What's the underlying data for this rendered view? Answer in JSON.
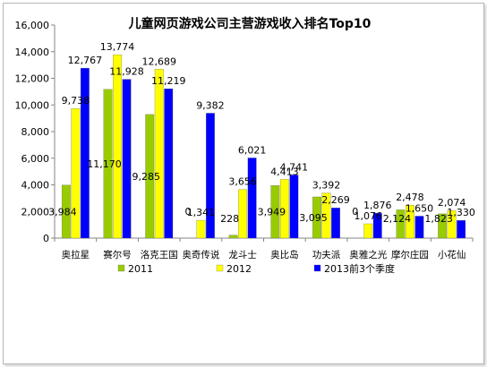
{
  "chart_data": {
    "type": "bar",
    "title": "儿童网页游戏公司主营游戏收入排名Top10",
    "categories": [
      "奥拉星",
      "赛尔号",
      "洛克王国",
      "奥奇传说",
      "龙斗士",
      "奥比岛",
      "功夫派",
      "奥雅之光",
      "摩尔庄园",
      "小花仙"
    ],
    "series": [
      {
        "name": "2011",
        "color": "#99cc00",
        "values": [
          3984,
          11170,
          9285,
          0,
          228,
          3949,
          3095,
          0,
          2124,
          1823
        ]
      },
      {
        "name": "2012",
        "color": "#ffff00",
        "values": [
          9738,
          13774,
          12689,
          1341,
          3656,
          4413,
          3392,
          1076,
          2478,
          2074
        ]
      },
      {
        "name": "2013前3个季度",
        "color": "#0000ff",
        "values": [
          12767,
          11928,
          11219,
          9382,
          6021,
          4741,
          2269,
          1876,
          1650,
          1330
        ]
      }
    ],
    "data_labels": [
      [
        "3,984",
        "11,170",
        "9,285",
        "0",
        "228",
        "3,949",
        "3,095",
        "0",
        "2,124",
        "1,823"
      ],
      [
        "9,738",
        "13,774",
        "12,689",
        "1,341",
        "3,656",
        "4,413",
        "3,392",
        "1,076",
        "2,478",
        "2,074"
      ],
      [
        "12,767",
        "11,928",
        "11,219",
        "9,382",
        "6,021",
        "4,741",
        "2,269",
        "1,876",
        "1,650",
        "1,330"
      ]
    ],
    "y_ticks": [
      "0",
      "2,000",
      "4,000",
      "6,000",
      "8,000",
      "10,000",
      "12,000",
      "14,000",
      "16,000"
    ],
    "ylim": [
      0,
      16000
    ],
    "grid": false,
    "legend_position": "bottom"
  }
}
